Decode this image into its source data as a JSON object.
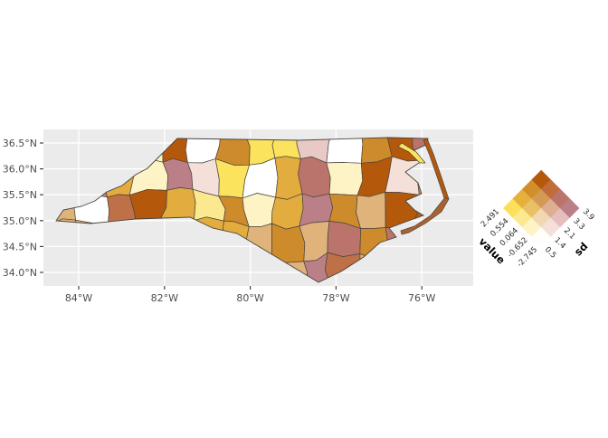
{
  "figure": {
    "background": "#ffffff",
    "panel_background": "#ebebeb",
    "gridline_color": "#ffffff",
    "axis_text_color": "#4d4d4d",
    "tick_mark_color": "#333333",
    "county_border_color": "#4a443e"
  },
  "x_axis": {
    "tick_labels": [
      "84°W",
      "82°W",
      "80°W",
      "78°W",
      "76°W"
    ],
    "lon_values": [
      84,
      82,
      80,
      78,
      76
    ]
  },
  "y_axis": {
    "tick_labels": [
      "36.5°N",
      "36.0°N",
      "35.5°N",
      "35.0°N",
      "34.5°N",
      "34.0°N"
    ],
    "lat_values": [
      36.5,
      36.0,
      35.5,
      35.0,
      34.5,
      34.0
    ]
  },
  "legend": {
    "value_label": "value",
    "sd_label": "sd",
    "value_ticks": [
      "2.491",
      "0.554",
      "0.064",
      "-0.652",
      "-2.745"
    ],
    "sd_ticks": [
      "0.5",
      "1.4",
      "2.1",
      "3.3",
      "3.9"
    ],
    "cells": [
      [
        "#FCE05C",
        "#E6B03C",
        "#D28E2B",
        "#B4590B"
      ],
      [
        "#FAE98F",
        "#E9C067",
        "#D39A55",
        "#C06C3B"
      ],
      [
        "#FDF3C4",
        "#F0D8B0",
        "#DDAE92",
        "#BA746B"
      ],
      [
        "#FFFEF8",
        "#F5DFD9",
        "#E4BFBD",
        "#BB7F87"
      ]
    ]
  },
  "map": {
    "region": "North Carolina counties",
    "county_colors": [
      "#CE8B2B",
      "#B4590B",
      "#BE7046",
      "#FDF3C4",
      "#B4590B",
      "#FFFFFF",
      "#CE8B2B",
      "#FCE35E",
      "#FCE35E",
      "#E9C9C5",
      "#FFFFFF",
      "#CE8B2B",
      "#B4590B",
      "#BA746B",
      "#B4590B",
      "#BB7F87",
      "#E2AC3E",
      "#FDF3C4",
      "#BB7F87",
      "#F5DFD9",
      "#FCE35E",
      "#FFFFFF",
      "#E2AC3E",
      "#BA746B",
      "#FDF3C4",
      "#B4590B",
      "#F5DFD9",
      "#CE8B2B",
      "#DFB379",
      "#FFFFFF",
      "#BE7046",
      "#B4590B",
      "#E2AC3E",
      "#FAE98F",
      "#CE8B2B",
      "#FDF3C4",
      "#E2AC3E",
      "#BB7F87",
      "#CE8B2B",
      "#DFB379",
      "#B4590B",
      "#B4590B",
      "#DFB379",
      "#DFB379",
      "#E2AC3E",
      "#FFFFFF",
      "#F5DFD9",
      "#E2AC3E",
      "#E2AC3E",
      "#DFB379",
      "#CE8B2B",
      "#DFB379",
      "#BA746B",
      "#CE8B2B",
      "#BA746B",
      "#BE7046",
      "#DFB379",
      "#DFB379",
      "#DFB379",
      "#DFB379",
      "#CE8B2B",
      "#DFB379",
      "#E2AC3E",
      "#CE8B2B",
      "#DFB379",
      "#BB7F87",
      "#BE7046",
      "#DFB379",
      "#DFB379",
      "#DFB379"
    ],
    "outer_banks_colors": [
      "#B4590B",
      "#A9622F",
      "#FCE35E"
    ]
  },
  "chart_data": {
    "type": "choropleth",
    "subtype": "bivariate_choropleth_map",
    "region": "North Carolina counties",
    "x_axis": {
      "ticks": [
        "84°W",
        "82°W",
        "80°W",
        "78°W",
        "76°W"
      ]
    },
    "y_axis": {
      "ticks": [
        "36.5°N",
        "36.0°N",
        "35.5°N",
        "35.0°N",
        "34.5°N",
        "34.0°N"
      ]
    },
    "legend": {
      "value_axis": {
        "label": "value",
        "breaks": [
          2.491,
          0.554,
          0.064,
          -0.652,
          -2.745
        ]
      },
      "sd_axis": {
        "label": "sd",
        "breaks": [
          0.5,
          1.4,
          2.1,
          3.3,
          3.9
        ]
      },
      "palette_4x4_rows_high_to_low_value": [
        [
          "#FCE05C",
          "#E6B03C",
          "#D28E2B",
          "#B4590B"
        ],
        [
          "#FAE98F",
          "#E9C067",
          "#D39A55",
          "#C06C3B"
        ],
        [
          "#FDF3C4",
          "#F0D8B0",
          "#DDAE92",
          "#BA746B"
        ],
        [
          "#FFFEF8",
          "#F5DFD9",
          "#E4BFBD",
          "#BB7F87"
        ]
      ]
    },
    "layout_hints": {
      "grid": "white major gridlines on gray panel",
      "legend_position": "right, rotated 45deg diamond"
    }
  }
}
